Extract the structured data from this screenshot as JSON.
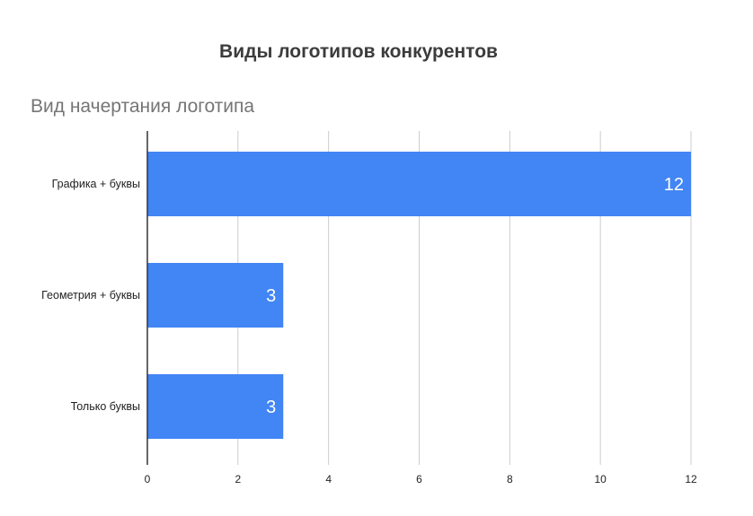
{
  "chart_data": {
    "type": "bar",
    "orientation": "horizontal",
    "title": "Виды логотипов конкурентов",
    "ylabel": "Вид начертания логотипа",
    "xlabel": "",
    "categories": [
      "Графика + буквы",
      "Геометрия + буквы",
      "Только буквы"
    ],
    "values": [
      12,
      3,
      3
    ],
    "data_labels": [
      "12",
      "3",
      "3"
    ],
    "xlim": [
      0,
      12
    ],
    "xticks": [
      "0",
      "2",
      "4",
      "6",
      "8",
      "10",
      "12"
    ],
    "grid": true,
    "legend": "none",
    "colors": {
      "bar": "#4285f4",
      "title": "#3c3c3c",
      "axis_title": "#757575",
      "grid": "#cccccc",
      "axis": "#333333"
    }
  }
}
